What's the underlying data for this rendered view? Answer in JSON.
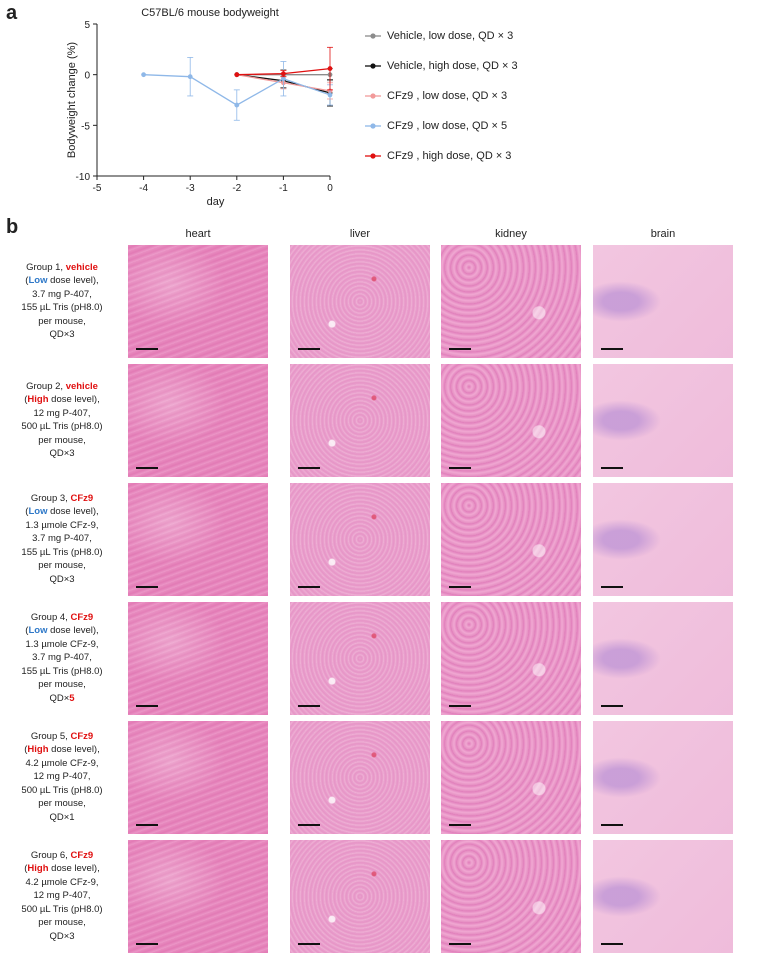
{
  "panels": {
    "a": "a",
    "b": "b"
  },
  "chart_data": {
    "type": "line",
    "title": "C57BL/6 mouse bodyweight",
    "xlabel": "day",
    "ylabel": "Bodyweight change (%)",
    "xlim": [
      -5,
      0
    ],
    "ylim": [
      -10,
      5
    ],
    "xticks": [
      -5,
      -4,
      -3,
      -2,
      -1,
      0
    ],
    "yticks": [
      -10,
      -5,
      0,
      5
    ],
    "legend_position": "right",
    "series": [
      {
        "name": "Vehicle, low dose, QD × 3",
        "color": "#8c8c8c",
        "x": [
          -2,
          -1,
          0
        ],
        "y": [
          0,
          0,
          0
        ],
        "err": [
          0,
          0.5,
          0.6
        ]
      },
      {
        "name": "Vehicle, high dose, QD × 3",
        "color": "#111111",
        "x": [
          -2,
          -1,
          0
        ],
        "y": [
          0,
          -0.6,
          -1.8
        ],
        "err": [
          0,
          0.7,
          1.3
        ]
      },
      {
        "name": "CFz9 , low dose, QD × 3",
        "color": "#f29a9a",
        "x": [
          -2,
          -1,
          0
        ],
        "y": [
          0,
          -0.8,
          -1.6
        ],
        "err": [
          0,
          0.6,
          0.8
        ]
      },
      {
        "name": "CFz9 , low dose, QD × 5",
        "color": "#8fb8e8",
        "x": [
          -4,
          -3,
          -2,
          -1,
          0
        ],
        "y": [
          0,
          -0.2,
          -3,
          -0.4,
          -2
        ],
        "err": [
          0,
          1.9,
          1.5,
          1.7,
          1.0
        ]
      },
      {
        "name": "CFz9 , high dose, QD × 3",
        "color": "#e01010",
        "x": [
          -2,
          -1,
          0
        ],
        "y": [
          0,
          0.1,
          0.6
        ],
        "err": [
          0,
          0.3,
          2.1
        ]
      }
    ]
  },
  "columns": [
    "heart",
    "liver",
    "kidney",
    "brain"
  ],
  "groups": [
    {
      "lines": [
        [
          [
            "Group 1, ",
            ""
          ],
          [
            "vehicle",
            "red"
          ]
        ],
        [
          [
            "(",
            ""
          ],
          [
            "Low",
            "blue"
          ],
          [
            " dose level),",
            ""
          ]
        ],
        [
          [
            "3.7 mg P-407,",
            ""
          ]
        ],
        [
          [
            "155 µL Tris (pH8.0)",
            ""
          ]
        ],
        [
          [
            "per mouse,",
            ""
          ]
        ],
        [
          [
            "QD×3",
            ""
          ]
        ]
      ]
    },
    {
      "lines": [
        [
          [
            "Group 2, ",
            ""
          ],
          [
            "vehicle",
            "red"
          ]
        ],
        [
          [
            "(",
            ""
          ],
          [
            "High",
            "red"
          ],
          [
            " dose level),",
            ""
          ]
        ],
        [
          [
            "12 mg P-407,",
            ""
          ]
        ],
        [
          [
            "500 µL Tris (pH8.0)",
            ""
          ]
        ],
        [
          [
            "per mouse,",
            ""
          ]
        ],
        [
          [
            "QD×3",
            ""
          ]
        ]
      ]
    },
    {
      "lines": [
        [
          [
            "Group 3, ",
            ""
          ],
          [
            "CFz9",
            "red"
          ]
        ],
        [
          [
            "(",
            ""
          ],
          [
            "Low",
            "blue"
          ],
          [
            " dose level),",
            ""
          ]
        ],
        [
          [
            "1.3 µmole CFz-9,",
            ""
          ]
        ],
        [
          [
            "3.7 mg P-407,",
            ""
          ]
        ],
        [
          [
            "155 µL Tris (pH8.0)",
            ""
          ]
        ],
        [
          [
            "per mouse,",
            ""
          ]
        ],
        [
          [
            "QD×3",
            ""
          ]
        ]
      ]
    },
    {
      "lines": [
        [
          [
            "Group 4, ",
            ""
          ],
          [
            "CFz9",
            "red"
          ]
        ],
        [
          [
            "(",
            ""
          ],
          [
            "Low",
            "blue"
          ],
          [
            " dose level),",
            ""
          ]
        ],
        [
          [
            "1.3 µmole CFz-9,",
            ""
          ]
        ],
        [
          [
            "3.7 mg P-407,",
            ""
          ]
        ],
        [
          [
            "155 µL Tris (pH8.0)",
            ""
          ]
        ],
        [
          [
            "per mouse,",
            ""
          ]
        ],
        [
          [
            "QD×",
            ""
          ],
          [
            "5",
            "red"
          ]
        ]
      ]
    },
    {
      "lines": [
        [
          [
            "Group 5, ",
            ""
          ],
          [
            "CFz9",
            "red"
          ]
        ],
        [
          [
            "(",
            ""
          ],
          [
            "High",
            "red"
          ],
          [
            " dose level),",
            ""
          ]
        ],
        [
          [
            "4.2 µmole CFz-9,",
            ""
          ]
        ],
        [
          [
            "12 mg P-407,",
            ""
          ]
        ],
        [
          [
            "500 µL Tris (pH8.0)",
            ""
          ]
        ],
        [
          [
            "per mouse,",
            ""
          ]
        ],
        [
          [
            "QD×1",
            ""
          ]
        ]
      ]
    },
    {
      "lines": [
        [
          [
            "Group 6, ",
            ""
          ],
          [
            "CFz9",
            "red"
          ]
        ],
        [
          [
            "(",
            ""
          ],
          [
            "High",
            "red"
          ],
          [
            " dose level),",
            ""
          ]
        ],
        [
          [
            "4.2 µmole CFz-9,",
            ""
          ]
        ],
        [
          [
            "12 mg P-407,",
            ""
          ]
        ],
        [
          [
            "500 µL Tris (pH8.0)",
            ""
          ]
        ],
        [
          [
            "per mouse,",
            ""
          ]
        ],
        [
          [
            "QD×3",
            ""
          ]
        ]
      ]
    }
  ]
}
